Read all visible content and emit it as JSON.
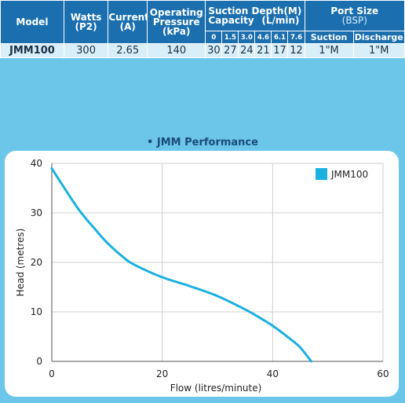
{
  "table": {
    "headers": {
      "model": "Model",
      "watts": "Watts",
      "watts_sub": "(P2)",
      "current": "Current",
      "current_sub": "(A)",
      "op_pressure_1": "Operating",
      "op_pressure_2": "Pressure",
      "op_pressure_3": "(kPa)",
      "suction_depth": "Suction Depth",
      "suction_m": "(M)",
      "capacity": "Capacity",
      "capacity_unit": "(L/min)",
      "depths": [
        "0",
        "1.5",
        "3.0",
        "4.6",
        "6.1",
        "7.6"
      ],
      "port_size": "Port Size",
      "port_bsp": "(BSP)",
      "suction": "Suction",
      "discharge": "Discharge"
    },
    "row": {
      "model": "JMM100",
      "watts": "300",
      "current": "2.65",
      "pressure": "140",
      "capacities": [
        "30",
        "27",
        "24",
        "21",
        "17",
        "12"
      ],
      "suction": "1\"M",
      "discharge": "1\"M"
    }
  },
  "section_title": "• JMM Performance",
  "colors": {
    "header_bg": "#1b6fae",
    "row_bg": "#d8eef8",
    "page_bg": "#6cc6ea",
    "series": "#1ab0e0"
  },
  "chart_data": {
    "type": "line",
    "title": "• JMM Performance",
    "xlabel": "Flow (litres/minute)",
    "ylabel": "Head (metres)",
    "xlim": [
      0,
      60
    ],
    "ylim": [
      0,
      40
    ],
    "x_ticks": [
      0,
      20,
      40,
      60
    ],
    "y_ticks": [
      0,
      10,
      20,
      30,
      40
    ],
    "grid": true,
    "legend_position": "top-right",
    "series": [
      {
        "name": "JMM100",
        "x": [
          0,
          2,
          5,
          8,
          10,
          13,
          15,
          20,
          25,
          30,
          35,
          38,
          40,
          43,
          45,
          47
        ],
        "y": [
          39,
          35.5,
          30.5,
          26.5,
          24,
          21,
          19.5,
          17,
          15.2,
          13.2,
          10.5,
          8.6,
          7.2,
          4.7,
          2.8,
          0
        ]
      }
    ]
  }
}
